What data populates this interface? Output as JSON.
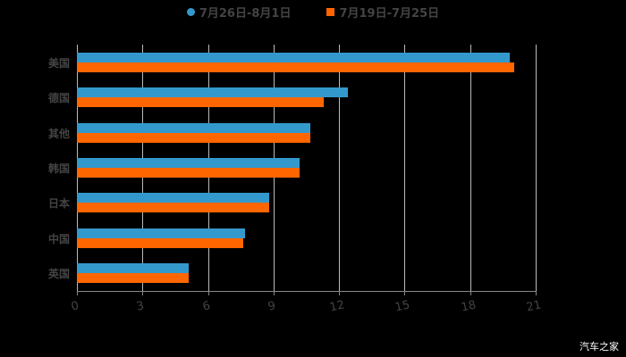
{
  "chart_data": {
    "type": "bar",
    "orientation": "horizontal",
    "title": "",
    "xlabel": "",
    "ylabel": "",
    "categories": [
      "美国",
      "德国",
      "其他",
      "韩国",
      "日本",
      "中国",
      "英国"
    ],
    "series": [
      {
        "name": "7月26日-8月1日",
        "color": "#3399cc",
        "values": [
          19.8,
          12.4,
          10.7,
          10.2,
          8.8,
          7.7,
          5.1
        ]
      },
      {
        "name": "7月19日-7月25日",
        "color": "#ff6600",
        "values": [
          20.0,
          11.3,
          10.7,
          10.2,
          8.8,
          7.6,
          5.1
        ]
      }
    ],
    "xlim": [
      0,
      21
    ],
    "xticks": [
      "0",
      "3",
      "6",
      "9",
      "12",
      "15",
      "18",
      "21"
    ],
    "grid": true,
    "legend_position": "top"
  },
  "legend": {
    "items": [
      {
        "label": "7月26日-8月1日",
        "color": "#3399cc",
        "shape": "circle"
      },
      {
        "label": "7月19日-7月25日",
        "color": "#ff6600",
        "shape": "square"
      }
    ]
  },
  "watermark": "汽车之家"
}
